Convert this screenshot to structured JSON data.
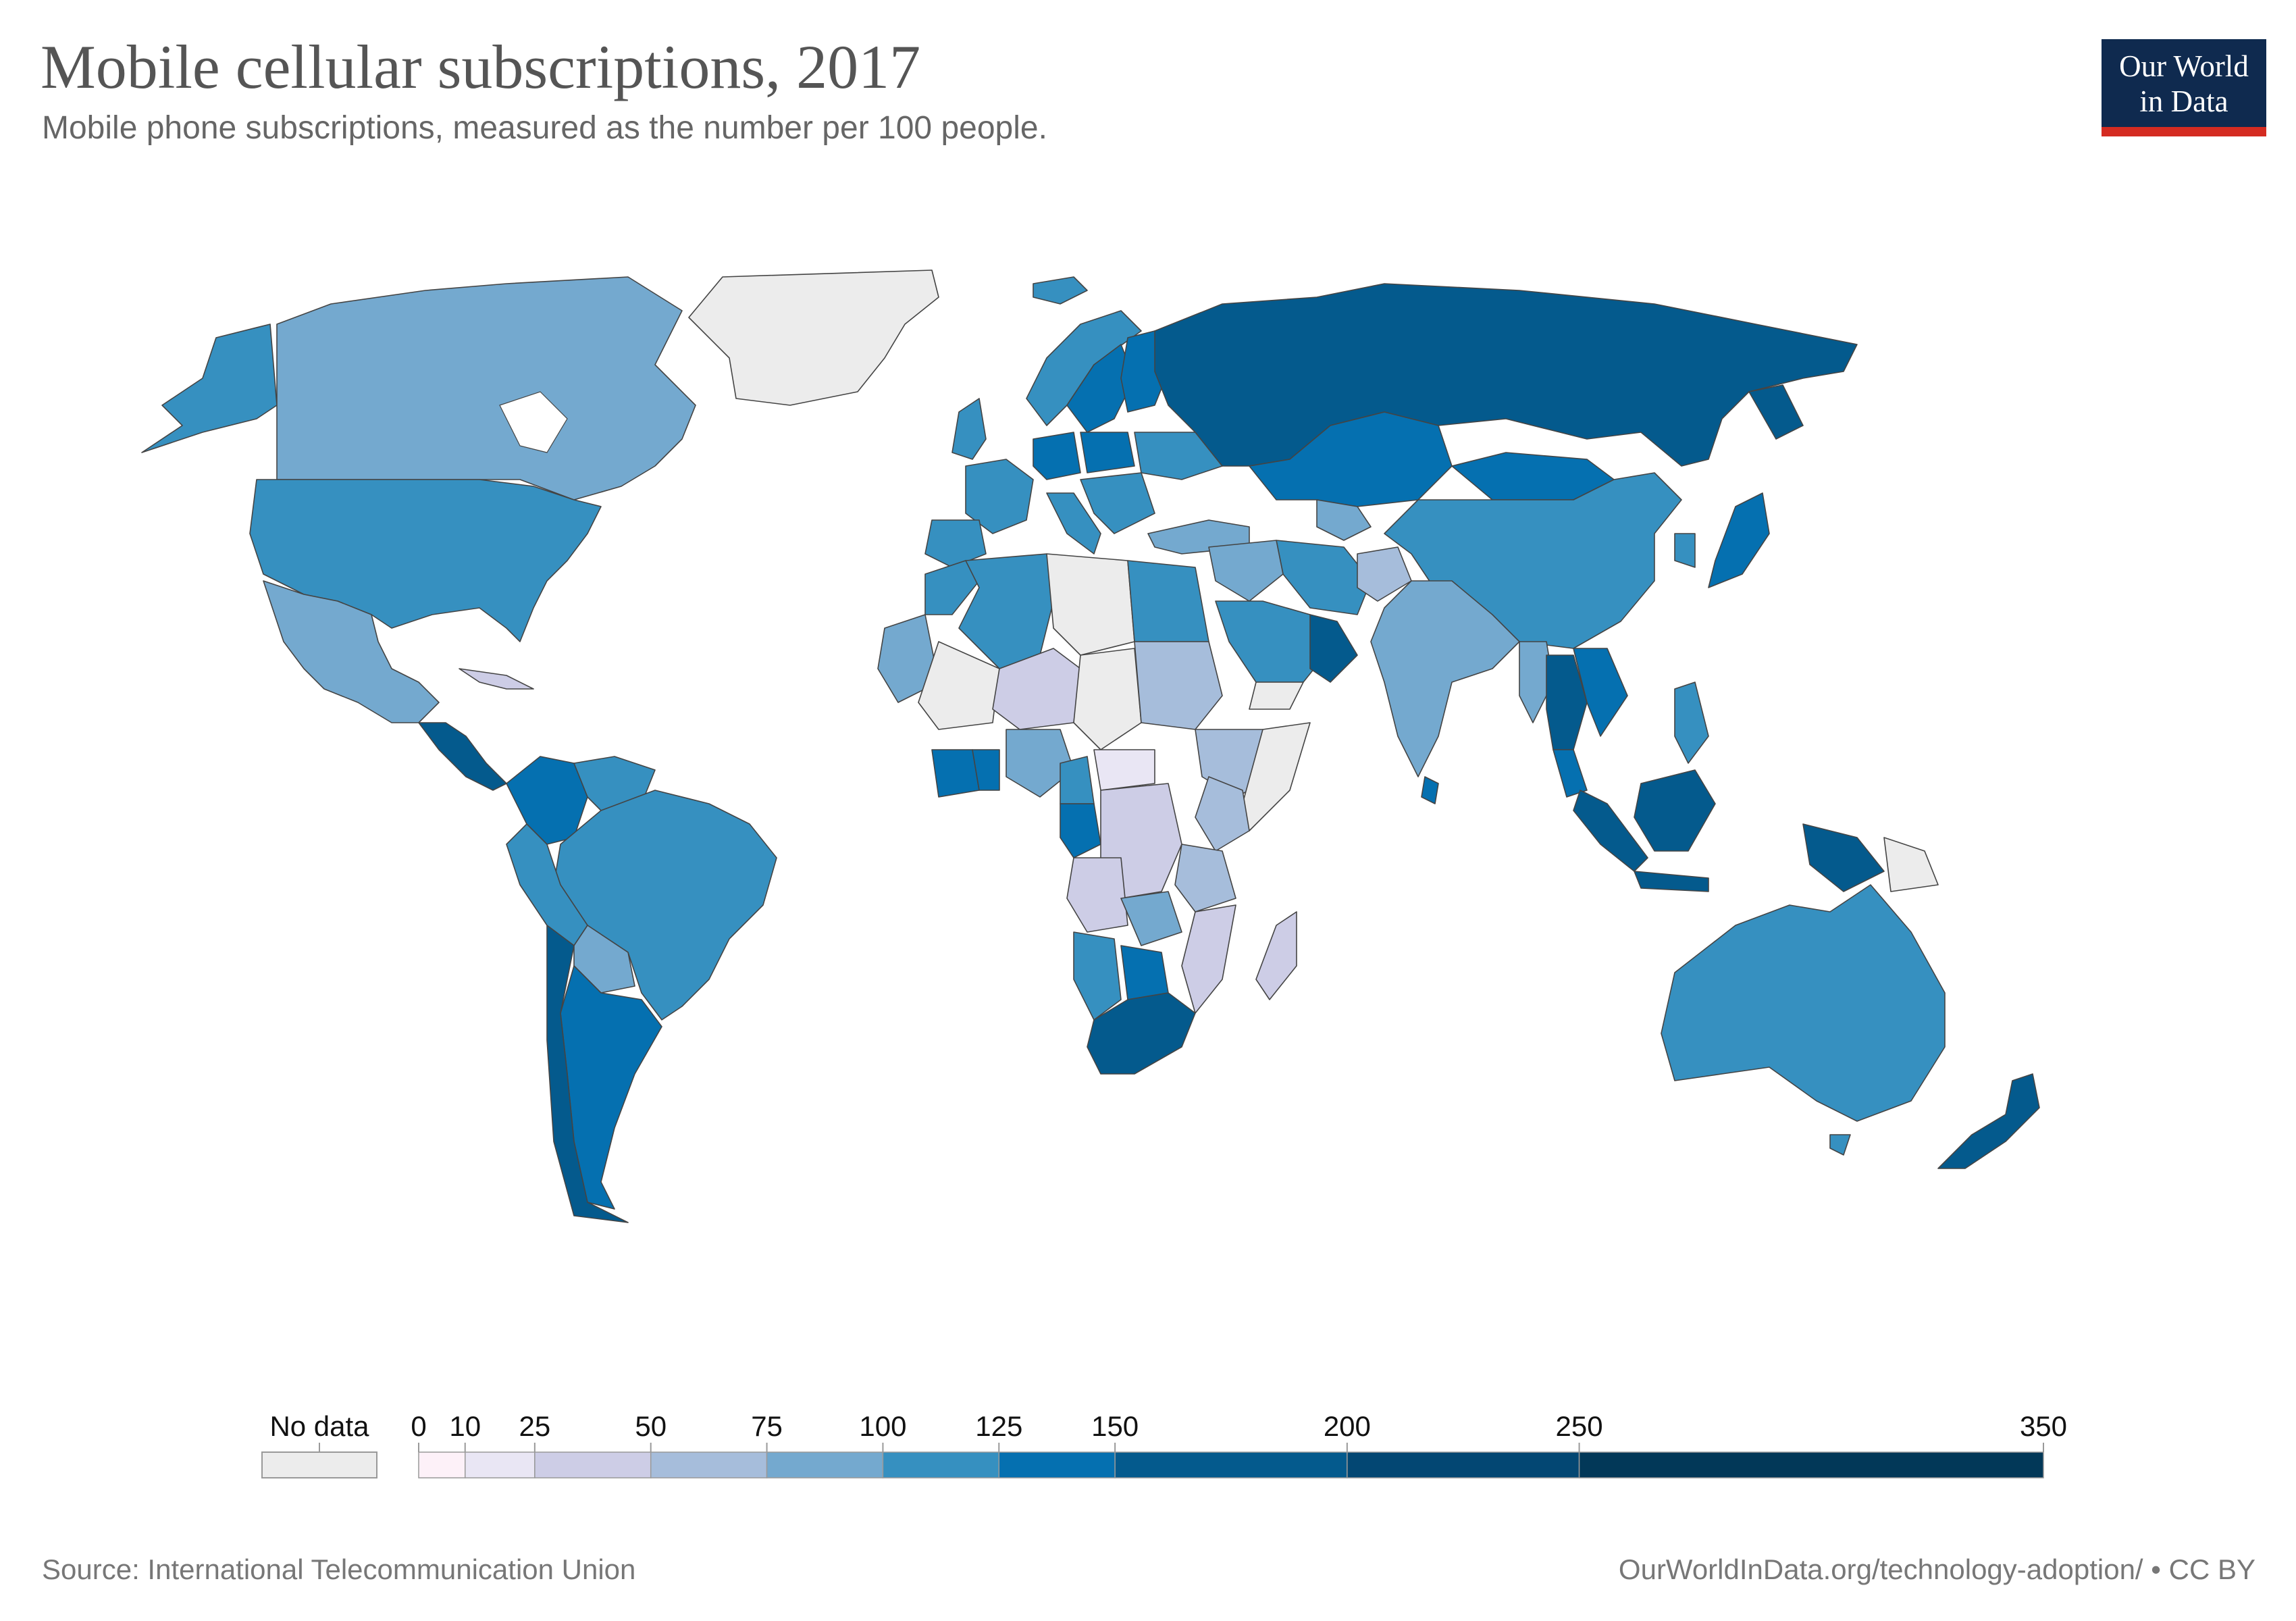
{
  "header": {
    "title": "Mobile cellular subscriptions, 2017",
    "subtitle": "Mobile phone subscriptions, measured as the number per 100 people."
  },
  "logo": {
    "line1": "Our World",
    "line2": "in Data"
  },
  "legend": {
    "no_data_label": "No data",
    "ticks": [
      "0",
      "10",
      "25",
      "50",
      "75",
      "100",
      "125",
      "150",
      "200",
      "250",
      "350"
    ],
    "bins": [
      {
        "from": 0,
        "to": 10,
        "color": "#fdf1f8"
      },
      {
        "from": 10,
        "to": 25,
        "color": "#e9e6f4"
      },
      {
        "from": 25,
        "to": 50,
        "color": "#cdcde6"
      },
      {
        "from": 50,
        "to": 75,
        "color": "#a6bddb"
      },
      {
        "from": 75,
        "to": 100,
        "color": "#74a9cf"
      },
      {
        "from": 100,
        "to": 125,
        "color": "#3690c0"
      },
      {
        "from": 125,
        "to": 150,
        "color": "#0570b0"
      },
      {
        "from": 150,
        "to": 200,
        "color": "#045a8d"
      },
      {
        "from": 200,
        "to": 250,
        "color": "#034773"
      },
      {
        "from": 250,
        "to": 350,
        "color": "#023858"
      }
    ],
    "no_data_color": "#ececec"
  },
  "map_colors": {
    "no_data": "#ececec",
    "c10": "#e9e6f4",
    "c25": "#cdcde6",
    "c50": "#a6bddb",
    "c75": "#74a9cf",
    "c100": "#3690c0",
    "c125": "#0570b0",
    "c150": "#045a8d",
    "c200": "#034773"
  },
  "footer": {
    "source": "Source: International Telecommunication Union",
    "url": "OurWorldInData.org/technology-adoption/ • CC BY"
  }
}
